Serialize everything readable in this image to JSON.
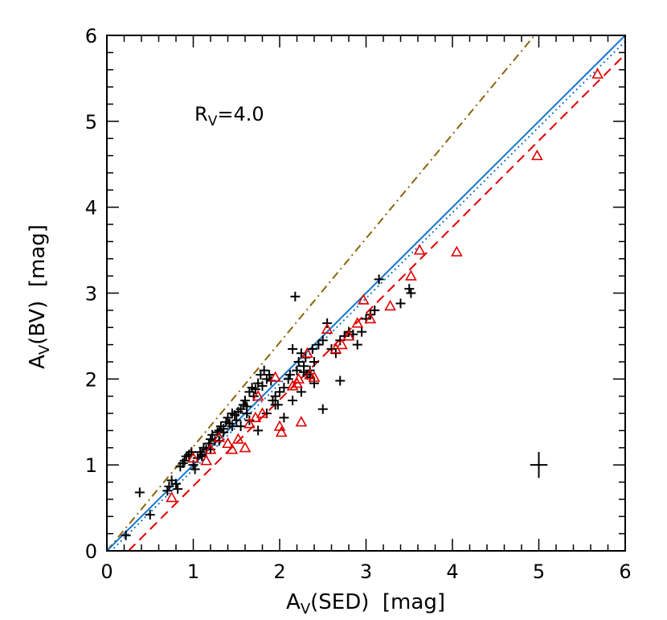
{
  "chart_data": {
    "type": "scatter",
    "xlabel_main": "A",
    "xlabel_sub": "V",
    "xlabel_rest": "(SED)  [mag]",
    "ylabel_main": "A",
    "ylabel_sub": "V",
    "ylabel_rest": "(BV)  [mag]",
    "annotation_main": "R",
    "annotation_sub": "V",
    "annotation_rest": "=4.0",
    "xlim": [
      0,
      6
    ],
    "ylim": [
      0,
      6
    ],
    "xticks": [
      "0",
      "1",
      "2",
      "3",
      "4",
      "5",
      "6"
    ],
    "yticks": [
      "0",
      "1",
      "2",
      "3",
      "4",
      "5",
      "6"
    ],
    "grid": false,
    "lines": [
      {
        "style": "dash-dot",
        "color": "#8B6508",
        "x": [
          0,
          4.95
        ],
        "y": [
          0,
          6
        ]
      },
      {
        "style": "solid",
        "color": "#1874CD",
        "x": [
          0,
          6
        ],
        "y": [
          0,
          6
        ]
      },
      {
        "style": "dotted",
        "color": "#1874CD",
        "x": [
          0,
          6
        ],
        "y": [
          -0.05,
          5.93
        ]
      },
      {
        "style": "dashed",
        "color": "#E00000",
        "x": [
          0.25,
          6
        ],
        "y": [
          0,
          5.78
        ]
      }
    ],
    "series_plus": {
      "color": "#000000",
      "marker": "plus",
      "x": [
        0.22,
        0.38,
        0.5,
        0.7,
        0.72,
        0.75,
        0.8,
        0.82,
        0.85,
        0.88,
        0.9,
        0.92,
        0.95,
        0.98,
        1.0,
        1.02,
        1.05,
        1.08,
        1.1,
        1.12,
        1.15,
        1.18,
        1.2,
        1.22,
        1.25,
        1.28,
        1.3,
        1.32,
        1.35,
        1.38,
        1.4,
        1.42,
        1.45,
        1.48,
        1.5,
        1.52,
        1.55,
        1.58,
        1.6,
        1.62,
        1.65,
        1.68,
        1.7,
        1.72,
        1.75,
        1.78,
        1.8,
        1.82,
        1.85,
        1.88,
        1.9,
        1.92,
        1.95,
        1.98,
        2.0,
        2.05,
        2.1,
        2.12,
        2.15,
        2.18,
        2.2,
        2.22,
        2.25,
        2.28,
        2.3,
        2.32,
        2.35,
        2.38,
        2.4,
        2.45,
        2.5,
        2.55,
        2.6,
        2.65,
        2.7,
        2.75,
        2.8,
        2.85,
        2.9,
        2.95,
        3.0,
        3.05,
        3.1,
        3.15,
        3.4,
        3.5,
        3.52,
        1.35,
        1.45,
        1.62,
        1.75,
        1.95,
        2.05,
        2.15,
        2.25,
        2.4,
        2.5,
        2.7,
        1.1,
        1.2,
        1.3,
        1.55,
        1.65,
        1.85,
        2.28,
        2.35
      ],
      "y": [
        0.18,
        0.68,
        0.42,
        0.7,
        0.75,
        0.82,
        0.78,
        0.72,
        0.98,
        1.02,
        1.05,
        1.1,
        1.12,
        1.15,
        1.0,
        0.95,
        1.08,
        1.15,
        1.12,
        1.2,
        1.18,
        1.25,
        1.3,
        1.35,
        1.28,
        1.38,
        1.4,
        1.45,
        1.42,
        1.5,
        1.55,
        1.48,
        1.6,
        1.58,
        1.52,
        1.62,
        1.65,
        1.7,
        1.75,
        1.68,
        1.85,
        1.9,
        1.8,
        1.88,
        1.95,
        2.05,
        1.92,
        2.1,
        2.0,
        2.05,
        1.98,
        1.75,
        1.8,
        1.7,
        1.85,
        1.9,
        2.0,
        2.05,
        2.35,
        2.96,
        2.1,
        2.2,
        2.3,
        2.15,
        2.25,
        2.05,
        2.1,
        2.35,
        2.2,
        2.4,
        2.45,
        2.65,
        2.35,
        2.3,
        2.45,
        2.5,
        2.55,
        2.52,
        2.4,
        2.55,
        2.7,
        2.75,
        2.8,
        3.16,
        2.88,
        3.05,
        3.0,
        1.38,
        1.45,
        1.6,
        1.4,
        1.7,
        1.55,
        1.75,
        1.85,
        1.95,
        1.65,
        1.98,
        1.1,
        1.18,
        1.28,
        1.45,
        1.52,
        1.6,
        2.08,
        2.02
      ]
    },
    "series_triangle": {
      "color": "#E00000",
      "marker": "triangle",
      "x": [
        0.75,
        1.0,
        1.15,
        1.2,
        1.3,
        1.4,
        1.45,
        1.52,
        1.6,
        1.65,
        1.72,
        1.75,
        1.8,
        1.95,
        2.0,
        2.02,
        2.15,
        2.2,
        2.22,
        2.25,
        2.32,
        2.4,
        2.55,
        2.65,
        2.72,
        2.8,
        2.9,
        2.97,
        3.05,
        3.28,
        3.52,
        3.62,
        4.05,
        4.98,
        5.68,
        2.35
      ],
      "y": [
        0.62,
        1.08,
        1.05,
        1.18,
        1.32,
        1.25,
        1.18,
        1.3,
        1.2,
        1.48,
        1.55,
        1.8,
        1.6,
        2.02,
        1.45,
        1.38,
        1.92,
        1.95,
        2.0,
        1.5,
        2.3,
        2.02,
        2.58,
        2.35,
        2.4,
        2.5,
        2.65,
        2.92,
        2.7,
        2.85,
        3.2,
        3.5,
        3.48,
        4.6,
        5.55,
        2.05
      ]
    },
    "error_bar": {
      "x": 5.0,
      "y": 1.0,
      "xerr": 0.1,
      "yerr": 0.15,
      "color": "#000000"
    }
  }
}
